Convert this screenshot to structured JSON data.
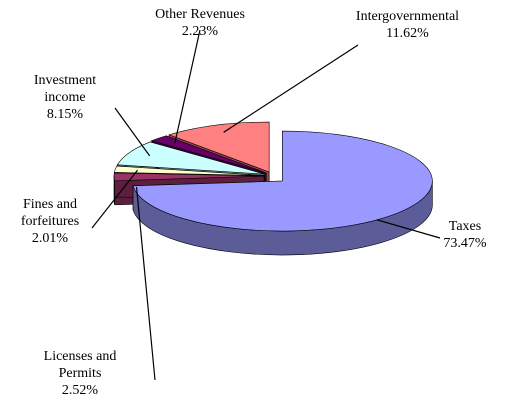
{
  "chart_data": {
    "type": "pie3d",
    "categories": [
      "Taxes",
      "Licenses and Permits",
      "Fines and forfeitures",
      "Investment income",
      "Other Revenues",
      "Intergovernmental"
    ],
    "values": [
      73.47,
      2.52,
      2.01,
      8.15,
      2.23,
      11.62
    ],
    "value_labels": [
      "73.47%",
      "2.52%",
      "2.01%",
      "8.15%",
      "2.23%",
      "11.62%"
    ],
    "colors": [
      "#9999ff",
      "#993366",
      "#ffffcc",
      "#ccffff",
      "#660066",
      "#ff8080"
    ]
  }
}
